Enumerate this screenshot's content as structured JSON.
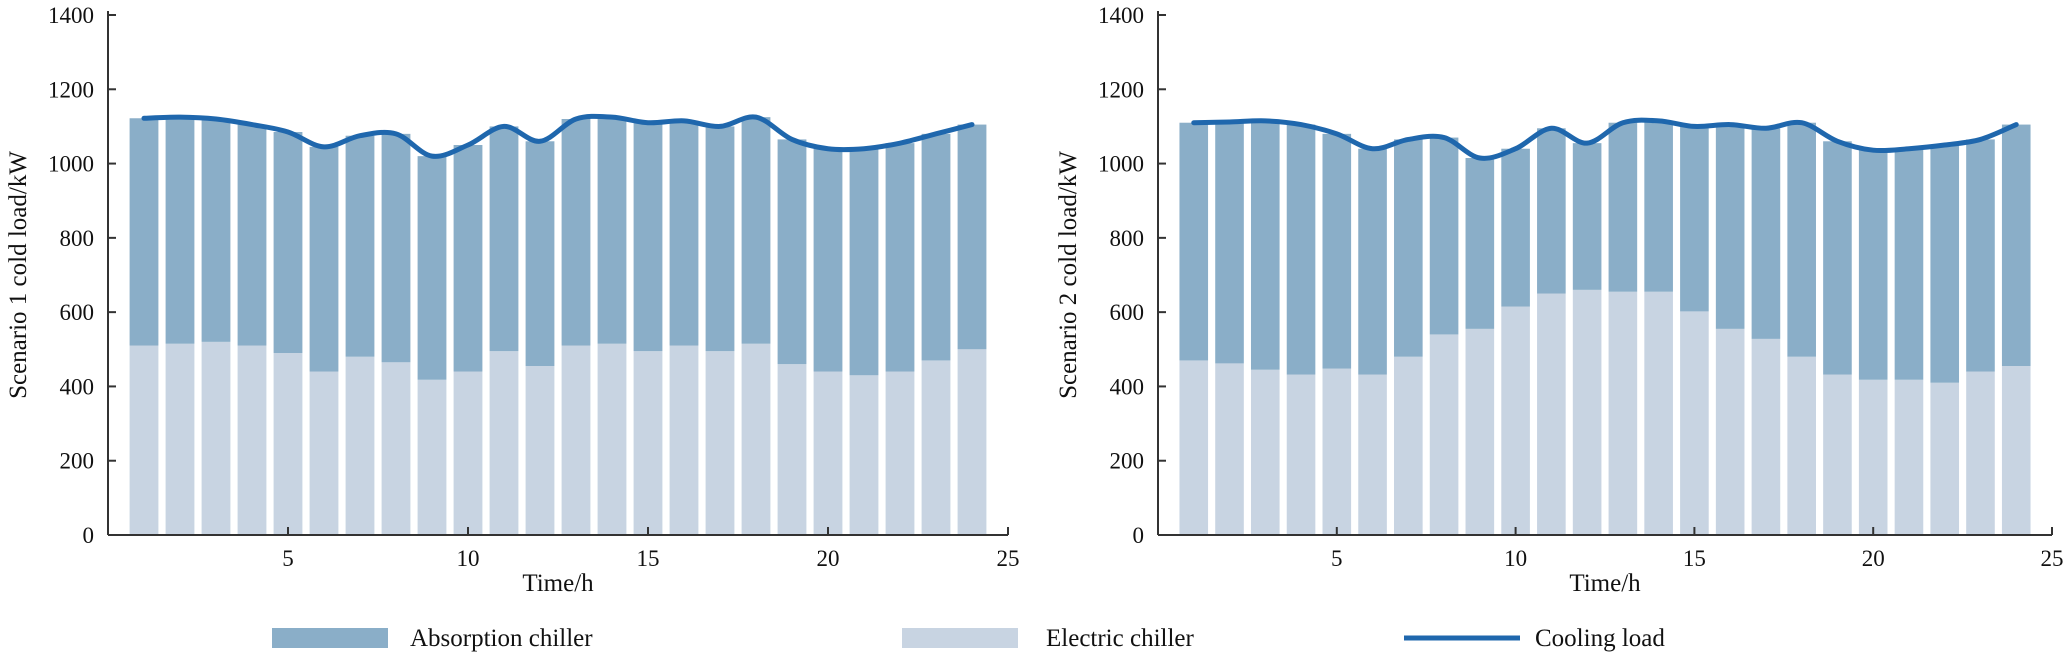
{
  "colors": {
    "absorption": "#8aaec8",
    "electric": "#c8d4e2",
    "cooling": "#1f67ad",
    "axis": "#333333"
  },
  "legend": [
    {
      "label": "Absorption chiller",
      "kind": "bar",
      "color": "#8aaec8"
    },
    {
      "label": "Electric chiller",
      "kind": "bar",
      "color": "#c8d4e2"
    },
    {
      "label": "Cooling load",
      "kind": "line",
      "color": "#1f67ad"
    }
  ],
  "chart_data": [
    {
      "type": "bar",
      "stacked": true,
      "xlabel": "Time/h",
      "ylabel": "Scenario 1 cold load/kW",
      "xlim": [
        0,
        25
      ],
      "ylim": [
        0,
        1400
      ],
      "xticks": [
        5,
        10,
        15,
        20,
        25
      ],
      "yticks": [
        0,
        200,
        400,
        600,
        800,
        1000,
        1200,
        1400
      ],
      "x": [
        1,
        2,
        3,
        4,
        5,
        6,
        7,
        8,
        9,
        10,
        11,
        12,
        13,
        14,
        15,
        16,
        17,
        18,
        19,
        20,
        21,
        22,
        23,
        24
      ],
      "series": [
        {
          "name": "Electric chiller",
          "kind": "bar",
          "values": [
            510,
            515,
            520,
            510,
            490,
            440,
            480,
            465,
            418,
            440,
            495,
            455,
            510,
            515,
            495,
            510,
            495,
            515,
            460,
            440,
            430,
            440,
            470,
            500
          ]
        },
        {
          "name": "Absorption chiller",
          "kind": "bar",
          "values": [
            612,
            610,
            600,
            595,
            595,
            605,
            595,
            615,
            602,
            610,
            605,
            605,
            610,
            610,
            615,
            605,
            605,
            610,
            605,
            600,
            610,
            615,
            610,
            605
          ]
        },
        {
          "name": "Cooling load",
          "kind": "line",
          "values": [
            1122,
            1125,
            1120,
            1105,
            1085,
            1045,
            1075,
            1080,
            1020,
            1050,
            1100,
            1060,
            1120,
            1125,
            1110,
            1115,
            1100,
            1125,
            1065,
            1040,
            1040,
            1055,
            1080,
            1105
          ]
        }
      ]
    },
    {
      "type": "bar",
      "stacked": true,
      "xlabel": "Time/h",
      "ylabel": "Scenario 2 cold load/kW",
      "xlim": [
        0,
        25
      ],
      "ylim": [
        0,
        1400
      ],
      "xticks": [
        5,
        10,
        15,
        20,
        25
      ],
      "yticks": [
        0,
        200,
        400,
        600,
        800,
        1000,
        1200,
        1400
      ],
      "x": [
        1,
        2,
        3,
        4,
        5,
        6,
        7,
        8,
        9,
        10,
        11,
        12,
        13,
        14,
        15,
        16,
        17,
        18,
        19,
        20,
        21,
        22,
        23,
        24
      ],
      "series": [
        {
          "name": "Electric chiller",
          "kind": "bar",
          "values": [
            470,
            462,
            445,
            432,
            448,
            432,
            480,
            540,
            555,
            615,
            650,
            660,
            655,
            655,
            602,
            555,
            528,
            480,
            432,
            418,
            418,
            410,
            440,
            455
          ]
        },
        {
          "name": "Absorption chiller",
          "kind": "bar",
          "values": [
            640,
            650,
            670,
            673,
            632,
            608,
            585,
            530,
            460,
            425,
            445,
            395,
            455,
            460,
            498,
            550,
            567,
            630,
            628,
            618,
            622,
            640,
            625,
            650
          ]
        },
        {
          "name": "Cooling load",
          "kind": "line",
          "values": [
            1110,
            1112,
            1115,
            1105,
            1080,
            1040,
            1065,
            1070,
            1015,
            1040,
            1095,
            1055,
            1110,
            1115,
            1100,
            1105,
            1095,
            1110,
            1060,
            1036,
            1040,
            1050,
            1065,
            1105
          ]
        }
      ]
    }
  ]
}
